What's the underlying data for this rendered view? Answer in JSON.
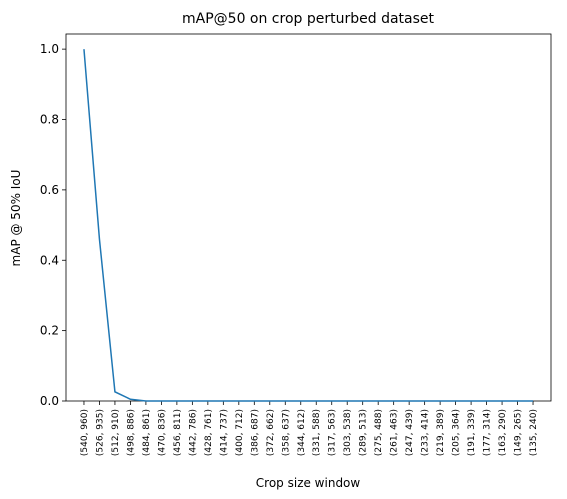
{
  "chart_data": {
    "type": "line",
    "title": "mAP@50 on crop perturbed dataset",
    "x_label": "Crop size window",
    "y_label": "mAP @ 50% IoU",
    "categories": [
      "(540, 960)",
      "(526, 935)",
      "(512, 910)",
      "(498, 886)",
      "(484, 861)",
      "(470, 836)",
      "(456, 811)",
      "(442, 786)",
      "(428, 761)",
      "(414, 737)",
      "(400, 712)",
      "(386, 687)",
      "(372, 662)",
      "(358, 637)",
      "(344, 612)",
      "(331, 588)",
      "(317, 563)",
      "(303, 538)",
      "(289, 513)",
      "(275, 488)",
      "(261, 463)",
      "(247, 439)",
      "(233, 414)",
      "(219, 389)",
      "(205, 364)",
      "(191, 339)",
      "(177, 314)",
      "(163, 290)",
      "(149, 265)",
      "(135, 240)"
    ],
    "values": [
      1.0,
      0.46,
      0.026,
      0.005,
      0,
      0,
      0,
      0,
      0,
      0,
      0,
      0,
      0,
      0,
      0,
      0,
      0,
      0,
      0,
      0,
      0,
      0,
      0,
      0,
      0,
      0,
      0,
      0,
      0,
      0
    ],
    "color": "#1f77b4",
    "ylim": [
      0,
      1.043
    ],
    "yticks": [
      {
        "value": 0,
        "label": "0.0"
      },
      0.2,
      0.4,
      0.6,
      0.8,
      {
        "value": 1.0,
        "label": "1.0"
      }
    ]
  }
}
